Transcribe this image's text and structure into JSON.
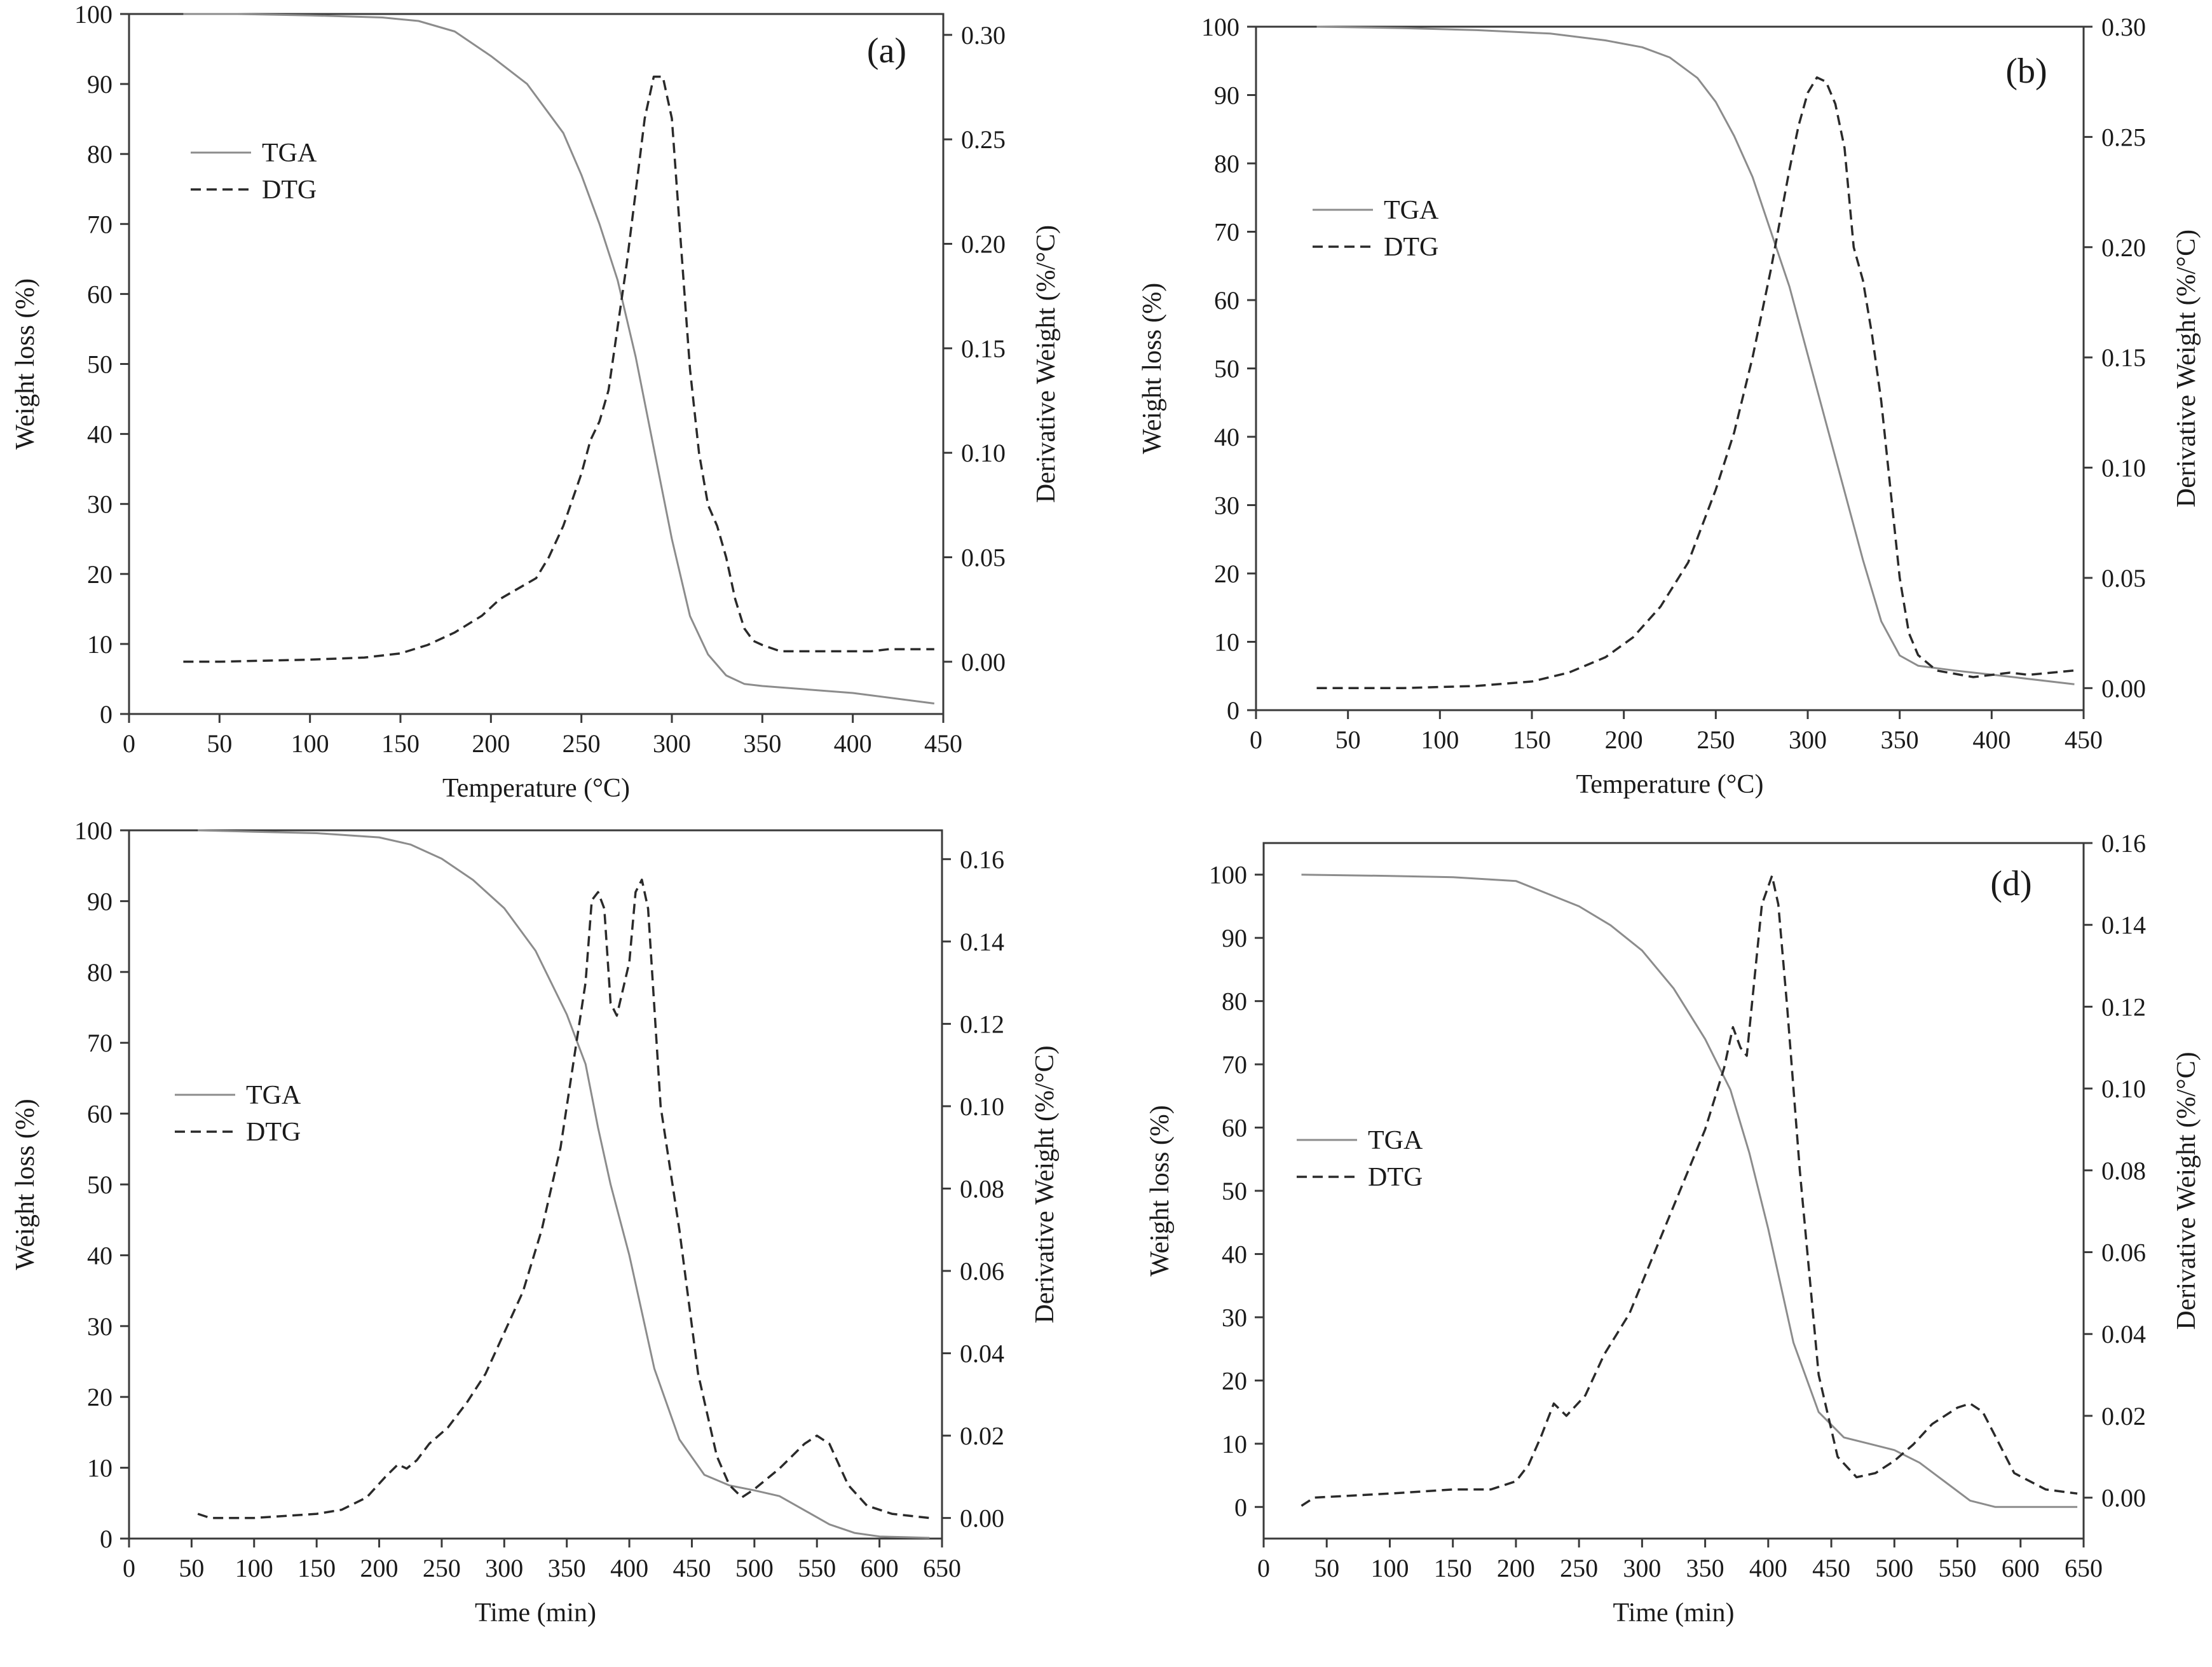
{
  "figure": {
    "background": "#ffffff",
    "axis_color": "#3a3a3a",
    "tga_color": "#8c8c8c",
    "dtg_color": "#2a2a2a"
  },
  "chart_data": [
    {
      "id": "a",
      "type": "line",
      "panel_label": "(a)",
      "xlabel": "Temperature (°C)",
      "ylabel_left": "Weight loss (%)",
      "ylabel_right": "Derivative Weight (%/°C)",
      "xlim": [
        0,
        450
      ],
      "xticks": [
        0,
        50,
        100,
        150,
        200,
        250,
        300,
        350,
        400,
        450
      ],
      "ylim_left": [
        0,
        100
      ],
      "yticks_left": [
        0,
        10,
        20,
        30,
        40,
        50,
        60,
        70,
        80,
        90,
        100
      ],
      "ylim_right": [
        -0.025,
        0.31
      ],
      "yticks_right": [
        "0.00",
        "0.05",
        "0.10",
        "0.15",
        "0.20",
        "0.25",
        "0.30"
      ],
      "legend": {
        "location": "upper-left",
        "entries": [
          "TGA",
          "DTG"
        ]
      },
      "series": [
        {
          "name": "TGA",
          "axis": "left",
          "style": "solid",
          "x": [
            30,
            60,
            100,
            140,
            160,
            180,
            200,
            220,
            240,
            250,
            260,
            270,
            280,
            290,
            300,
            310,
            320,
            330,
            340,
            350,
            400,
            445
          ],
          "y": [
            100,
            100,
            99.8,
            99.5,
            99,
            97.5,
            94,
            90,
            83,
            77,
            70,
            62,
            51,
            38,
            25,
            14,
            8.5,
            5.5,
            4.3,
            4,
            3,
            1.5
          ]
        },
        {
          "name": "DTG",
          "axis": "right",
          "style": "dashed",
          "x": [
            30,
            50,
            100,
            130,
            150,
            165,
            180,
            195,
            205,
            215,
            225,
            232,
            240,
            250,
            255,
            260,
            265,
            270,
            275,
            280,
            285,
            290,
            295,
            300,
            305,
            310,
            315,
            320,
            325,
            330,
            335,
            340,
            345,
            350,
            360,
            380,
            410,
            420,
            445
          ],
          "y": [
            0,
            0,
            0.001,
            0.002,
            0.004,
            0.008,
            0.014,
            0.022,
            0.03,
            0.035,
            0.04,
            0.05,
            0.065,
            0.09,
            0.106,
            0.115,
            0.13,
            0.16,
            0.19,
            0.225,
            0.26,
            0.28,
            0.28,
            0.26,
            0.2,
            0.14,
            0.1,
            0.075,
            0.065,
            0.05,
            0.03,
            0.016,
            0.01,
            0.008,
            0.005,
            0.005,
            0.005,
            0.006,
            0.006
          ]
        }
      ]
    },
    {
      "id": "b",
      "type": "line",
      "panel_label": "(b)",
      "xlabel": "Temperature (°C)",
      "ylabel_left": "Weight loss (%)",
      "ylabel_right": "Derivative Weight (%/°C)",
      "xlim": [
        0,
        450
      ],
      "xticks": [
        0,
        50,
        100,
        150,
        200,
        250,
        300,
        350,
        400,
        450
      ],
      "ylim_left": [
        0,
        100
      ],
      "yticks_left": [
        0,
        10,
        20,
        30,
        40,
        50,
        60,
        70,
        80,
        90,
        100
      ],
      "ylim_right": [
        -0.01,
        0.3
      ],
      "yticks_right": [
        "0.00",
        "0.05",
        "0.10",
        "0.15",
        "0.20",
        "0.25",
        "0.30"
      ],
      "legend": {
        "location": "upper-left",
        "entries": [
          "TGA",
          "DTG"
        ]
      },
      "series": [
        {
          "name": "TGA",
          "axis": "left",
          "style": "solid",
          "x": [
            33,
            80,
            120,
            160,
            190,
            210,
            225,
            240,
            250,
            260,
            270,
            280,
            290,
            300,
            310,
            320,
            330,
            340,
            350,
            360,
            380,
            400,
            445
          ],
          "y": [
            100,
            99.8,
            99.5,
            99,
            98,
            97,
            95.5,
            92.5,
            89,
            84,
            78,
            70,
            62,
            52,
            42,
            32,
            22,
            13,
            8,
            6.5,
            5.8,
            5.2,
            3.8
          ]
        },
        {
          "name": "DTG",
          "axis": "right",
          "style": "dashed",
          "x": [
            33,
            80,
            120,
            150,
            170,
            190,
            205,
            220,
            235,
            250,
            260,
            270,
            280,
            290,
            295,
            300,
            305,
            310,
            315,
            320,
            325,
            330,
            335,
            340,
            345,
            350,
            355,
            360,
            370,
            390,
            410,
            420,
            445
          ],
          "y": [
            0,
            0,
            0.001,
            0.003,
            0.007,
            0.014,
            0.023,
            0.037,
            0.057,
            0.09,
            0.116,
            0.15,
            0.19,
            0.235,
            0.255,
            0.27,
            0.277,
            0.275,
            0.265,
            0.245,
            0.2,
            0.185,
            0.16,
            0.13,
            0.09,
            0.05,
            0.025,
            0.015,
            0.008,
            0.005,
            0.007,
            0.006,
            0.008
          ]
        }
      ]
    },
    {
      "id": "c",
      "type": "line",
      "panel_label": "",
      "xlabel": "Time (min)",
      "ylabel_left": "Weight loss (%)",
      "ylabel_right": "Derivative Weight (%/°C)",
      "xlim": [
        0,
        650
      ],
      "xticks": [
        0,
        50,
        100,
        150,
        200,
        250,
        300,
        350,
        400,
        450,
        500,
        550,
        600,
        650
      ],
      "ylim_left": [
        0,
        100
      ],
      "yticks_left": [
        0,
        10,
        20,
        30,
        40,
        50,
        60,
        70,
        80,
        90,
        100
      ],
      "ylim_right": [
        -0.005,
        0.167
      ],
      "yticks_right": [
        "0.00",
        "0.02",
        "0.04",
        "0.06",
        "0.08",
        "0.10",
        "0.12",
        "0.14",
        "0.16"
      ],
      "legend": {
        "location": "middle-left",
        "entries": [
          "TGA",
          "DTG"
        ]
      },
      "series": [
        {
          "name": "TGA",
          "axis": "left",
          "style": "solid",
          "x": [
            55,
            100,
            150,
            200,
            225,
            250,
            275,
            300,
            325,
            350,
            365,
            375,
            385,
            400,
            420,
            440,
            460,
            480,
            500,
            520,
            540,
            560,
            580,
            600,
            620,
            640
          ],
          "y": [
            100,
            99.8,
            99.6,
            99,
            98,
            96,
            93,
            89,
            83,
            74,
            67,
            58,
            50,
            40,
            24,
            14,
            9,
            7.5,
            6.8,
            6,
            4,
            2,
            0.8,
            0.3,
            0.2,
            0.1
          ]
        },
        {
          "name": "DTG",
          "axis": "right",
          "style": "dashed",
          "x": [
            55,
            65,
            100,
            150,
            170,
            190,
            205,
            215,
            222,
            230,
            240,
            255,
            270,
            285,
            300,
            315,
            330,
            345,
            355,
            365,
            370,
            375,
            380,
            385,
            390,
            400,
            405,
            410,
            415,
            425,
            440,
            455,
            470,
            480,
            490,
            500,
            520,
            540,
            550,
            560,
            575,
            590,
            610,
            640
          ],
          "y": [
            0.001,
            0,
            0,
            0.001,
            0.002,
            0.005,
            0.01,
            0.013,
            0.012,
            0.014,
            0.018,
            0.022,
            0.028,
            0.035,
            0.045,
            0.055,
            0.07,
            0.09,
            0.11,
            0.13,
            0.15,
            0.152,
            0.148,
            0.125,
            0.122,
            0.135,
            0.152,
            0.155,
            0.148,
            0.1,
            0.07,
            0.035,
            0.015,
            0.008,
            0.005,
            0.007,
            0.012,
            0.018,
            0.02,
            0.018,
            0.008,
            0.003,
            0.001,
            0
          ]
        }
      ]
    },
    {
      "id": "d",
      "type": "line",
      "panel_label": "(d)",
      "xlabel": "Time (min)",
      "ylabel_left": "Weight loss (%)",
      "ylabel_right": "Derivative Weight (%/°C)",
      "xlim": [
        0,
        650
      ],
      "xticks": [
        0,
        50,
        100,
        150,
        200,
        250,
        300,
        350,
        400,
        450,
        500,
        550,
        600,
        650
      ],
      "ylim_left": [
        -5,
        105
      ],
      "yticks_left": [
        0,
        10,
        20,
        30,
        40,
        50,
        60,
        70,
        80,
        90,
        100
      ],
      "ylim_right": [
        -0.01,
        0.16
      ],
      "yticks_right": [
        "0.00",
        "0.02",
        "0.04",
        "0.06",
        "0.08",
        "0.10",
        "0.12",
        "0.14",
        "0.16"
      ],
      "legend": {
        "location": "upper-left",
        "entries": [
          "TGA",
          "DTG"
        ]
      },
      "series": [
        {
          "name": "TGA",
          "axis": "left",
          "style": "solid",
          "x": [
            30,
            100,
            150,
            200,
            225,
            250,
            275,
            300,
            325,
            350,
            370,
            385,
            400,
            420,
            440,
            460,
            480,
            500,
            520,
            540,
            560,
            580,
            600,
            645
          ],
          "y": [
            100,
            99.8,
            99.6,
            99,
            97,
            95,
            92,
            88,
            82,
            74,
            66,
            56,
            44,
            26,
            15,
            11,
            10,
            9,
            7,
            4,
            1,
            0,
            0,
            0
          ]
        },
        {
          "name": "DTG",
          "axis": "right",
          "style": "dashed",
          "x": [
            30,
            40,
            100,
            150,
            180,
            200,
            210,
            220,
            230,
            240,
            255,
            270,
            290,
            310,
            330,
            350,
            365,
            372,
            378,
            383,
            395,
            403,
            408,
            415,
            425,
            440,
            455,
            470,
            485,
            500,
            515,
            530,
            550,
            560,
            570,
            580,
            595,
            620,
            645
          ],
          "y": [
            -0.002,
            0,
            0.001,
            0.002,
            0.002,
            0.004,
            0.008,
            0.015,
            0.023,
            0.02,
            0.025,
            0.035,
            0.045,
            0.06,
            0.075,
            0.09,
            0.105,
            0.115,
            0.11,
            0.108,
            0.145,
            0.152,
            0.145,
            0.12,
            0.08,
            0.03,
            0.01,
            0.005,
            0.006,
            0.009,
            0.013,
            0.018,
            0.022,
            0.023,
            0.021,
            0.015,
            0.006,
            0.002,
            0.001
          ]
        }
      ]
    }
  ]
}
